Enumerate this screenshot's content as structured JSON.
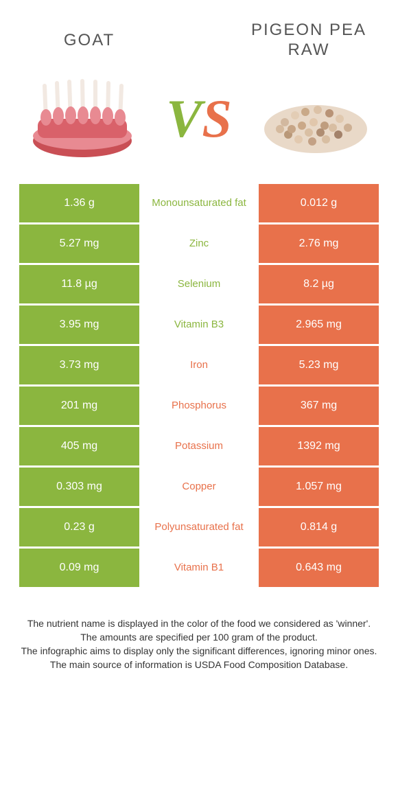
{
  "titles": {
    "left": "GOAT",
    "right": "PIGEON PEA RAW"
  },
  "vs": {
    "v": "V",
    "s": "S"
  },
  "colors": {
    "green": "#8bb63f",
    "orange": "#e8714b",
    "bg": "#ffffff"
  },
  "rows": [
    {
      "left": "1.36 g",
      "label": "Monounsaturated fat",
      "right": "0.012 g",
      "winner": "green"
    },
    {
      "left": "5.27 mg",
      "label": "Zinc",
      "right": "2.76 mg",
      "winner": "green"
    },
    {
      "left": "11.8 µg",
      "label": "Selenium",
      "right": "8.2 µg",
      "winner": "green"
    },
    {
      "left": "3.95 mg",
      "label": "Vitamin B3",
      "right": "2.965 mg",
      "winner": "green"
    },
    {
      "left": "3.73 mg",
      "label": "Iron",
      "right": "5.23 mg",
      "winner": "orange"
    },
    {
      "left": "201 mg",
      "label": "Phosphorus",
      "right": "367 mg",
      "winner": "orange"
    },
    {
      "left": "405 mg",
      "label": "Potassium",
      "right": "1392 mg",
      "winner": "orange"
    },
    {
      "left": "0.303 mg",
      "label": "Copper",
      "right": "1.057 mg",
      "winner": "orange"
    },
    {
      "left": "0.23 g",
      "label": "Polyunsaturated fat",
      "right": "0.814 g",
      "winner": "orange"
    },
    {
      "left": "0.09 mg",
      "label": "Vitamin B1",
      "right": "0.643 mg",
      "winner": "orange"
    }
  ],
  "footer": {
    "line1": "The nutrient name is displayed in the color of the food we considered as 'winner'.",
    "line2": "The amounts are specified per 100 gram of the product.",
    "line3": "The infographic aims to display only the significant differences, ignoring minor ones.",
    "line4": "The main source of information is USDA Food Composition Database."
  }
}
